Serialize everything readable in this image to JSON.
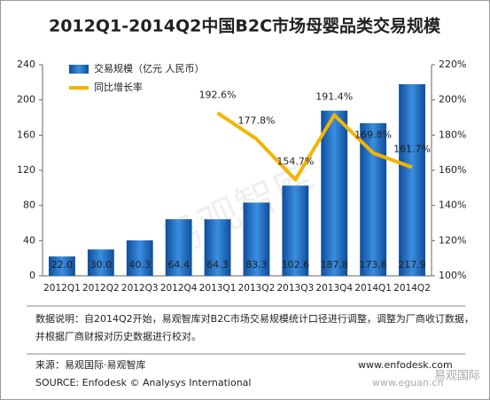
{
  "chart_data": {
    "type": "bar_line",
    "title": "2012Q1-2014Q2中国B2C市场母婴品类交易规模",
    "categories": [
      "2012Q1",
      "2012Q2",
      "2012Q3",
      "2012Q4",
      "2013Q1",
      "2013Q2",
      "2013Q3",
      "2013Q4",
      "2014Q1",
      "2014Q2"
    ],
    "series": [
      {
        "name": "交易规模（亿元 人民币）",
        "color": "#1f6fc0",
        "type": "bar",
        "values": [
          22.0,
          30.0,
          40.3,
          64.4,
          64.3,
          83.3,
          102.6,
          187.8,
          173.6,
          217.9
        ],
        "value_labels": [
          "22.0",
          "30.0",
          "40.3",
          "64.4",
          "64.3",
          "83.3",
          "102.6",
          "187.8",
          "173.6",
          "217.9"
        ]
      },
      {
        "name": "同比增长率",
        "color": "#f5b400",
        "type": "line",
        "axis": "y2",
        "values": [
          null,
          null,
          null,
          null,
          192.6,
          177.8,
          154.7,
          191.4,
          169.8,
          161.7
        ],
        "value_labels": [
          null,
          null,
          null,
          null,
          "192.6%",
          "177.8%",
          "154.7%",
          "191.4%",
          "169.8%",
          "161.7%"
        ]
      }
    ],
    "ylim": [
      0,
      240
    ],
    "yticks": [
      0,
      40,
      80,
      120,
      160,
      200,
      240
    ],
    "y2lim": [
      100,
      220
    ],
    "y2ticks": [
      {
        "value": 100,
        "label": "100%"
      },
      {
        "value": 120,
        "label": "120%"
      },
      {
        "value": 140,
        "label": "140%"
      },
      {
        "value": 160,
        "label": "160%"
      },
      {
        "value": 180,
        "label": "180%"
      },
      {
        "value": 200,
        "label": "200%"
      },
      {
        "value": 220,
        "label": "220%"
      }
    ],
    "note_lines": [
      "数据说明：自2014Q2开始，易观智库对B2C市场交易规模统计口径进行调整，调整为厂商收订数据，",
      "并根据厂商财报对历史数据进行校对。"
    ],
    "source": "来源：易观国际·易观智库",
    "source_en": "SOURCE: Enfodesk © Analysys International",
    "website": "www.enfodesk.com",
    "watermark": "易观智库",
    "corner_site": "www.eguan.cn",
    "corner_brand": "易观国际"
  }
}
